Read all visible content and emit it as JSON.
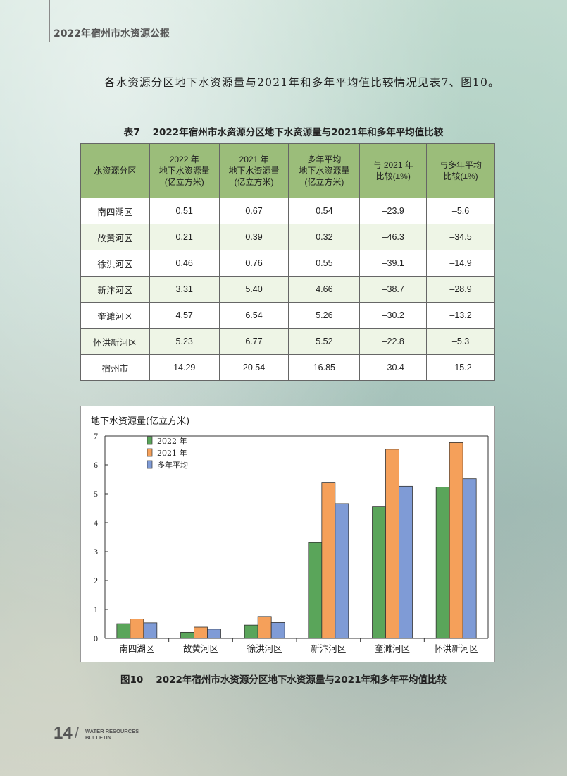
{
  "header": {
    "title": "2022年宿州市水资源公报"
  },
  "paragraph": "各水资源分区地下水资源量与2021年和多年平均值比较情况见表7、图10。",
  "table": {
    "caption_num": "表7",
    "caption_text": "2022年宿州市水资源分区地下水资源量与2021年和多年平均值比较",
    "headers": [
      [
        "水资源分区"
      ],
      [
        "2022 年",
        "地下水资源量",
        "(亿立方米)"
      ],
      [
        "2021 年",
        "地下水资源量",
        "(亿立方米)"
      ],
      [
        "多年平均",
        "地下水资源量",
        "(亿立方米)"
      ],
      [
        "与 2021 年",
        "比较(±%)"
      ],
      [
        "与多年平均",
        "比较(±%)"
      ]
    ],
    "rows": [
      [
        "南四湖区",
        "0.51",
        "0.67",
        "0.54",
        "–23.9",
        "–5.6"
      ],
      [
        "故黄河区",
        "0.21",
        "0.39",
        "0.32",
        "–46.3",
        "–34.5"
      ],
      [
        "徐洪河区",
        "0.46",
        "0.76",
        "0.55",
        "–39.1",
        "–14.9"
      ],
      [
        "新汴河区",
        "3.31",
        "5.40",
        "4.66",
        "–38.7",
        "–28.9"
      ],
      [
        "奎濉河区",
        "4.57",
        "6.54",
        "5.26",
        "–30.2",
        "–13.2"
      ],
      [
        "怀洪新河区",
        "5.23",
        "6.77",
        "5.52",
        "–22.8",
        "–5.3"
      ],
      [
        "宿州市",
        "14.29",
        "20.54",
        "16.85",
        "–30.4",
        "–15.2"
      ]
    ]
  },
  "chart_data": {
    "type": "bar",
    "ylabel": "地下水资源量(亿立方米)",
    "ylim": [
      0,
      7
    ],
    "yticks": [
      0,
      1,
      2,
      3,
      4,
      5,
      6,
      7
    ],
    "categories": [
      "南四湖区",
      "故黄河区",
      "徐洪河区",
      "新汴河区",
      "奎濉河区",
      "怀洪新河区"
    ],
    "series": [
      {
        "name": "2022 年",
        "color": "#5aa55a",
        "values": [
          0.51,
          0.21,
          0.46,
          3.31,
          4.57,
          5.23
        ]
      },
      {
        "name": "2021 年",
        "color": "#f5a05a",
        "values": [
          0.67,
          0.39,
          0.76,
          5.4,
          6.54,
          6.77
        ]
      },
      {
        "name": "多年平均",
        "color": "#7f9bd6",
        "values": [
          0.54,
          0.32,
          0.55,
          4.66,
          5.26,
          5.52
        ]
      }
    ],
    "legend": "top-left"
  },
  "figure": {
    "caption_num": "图10",
    "caption_text": "2022年宿州市水资源分区地下水资源量与2021年和多年平均值比较"
  },
  "footer": {
    "page_number": "14",
    "slash": "/",
    "brand_line1": "WATER RESOURCES",
    "brand_line2": "BULLETIN"
  }
}
